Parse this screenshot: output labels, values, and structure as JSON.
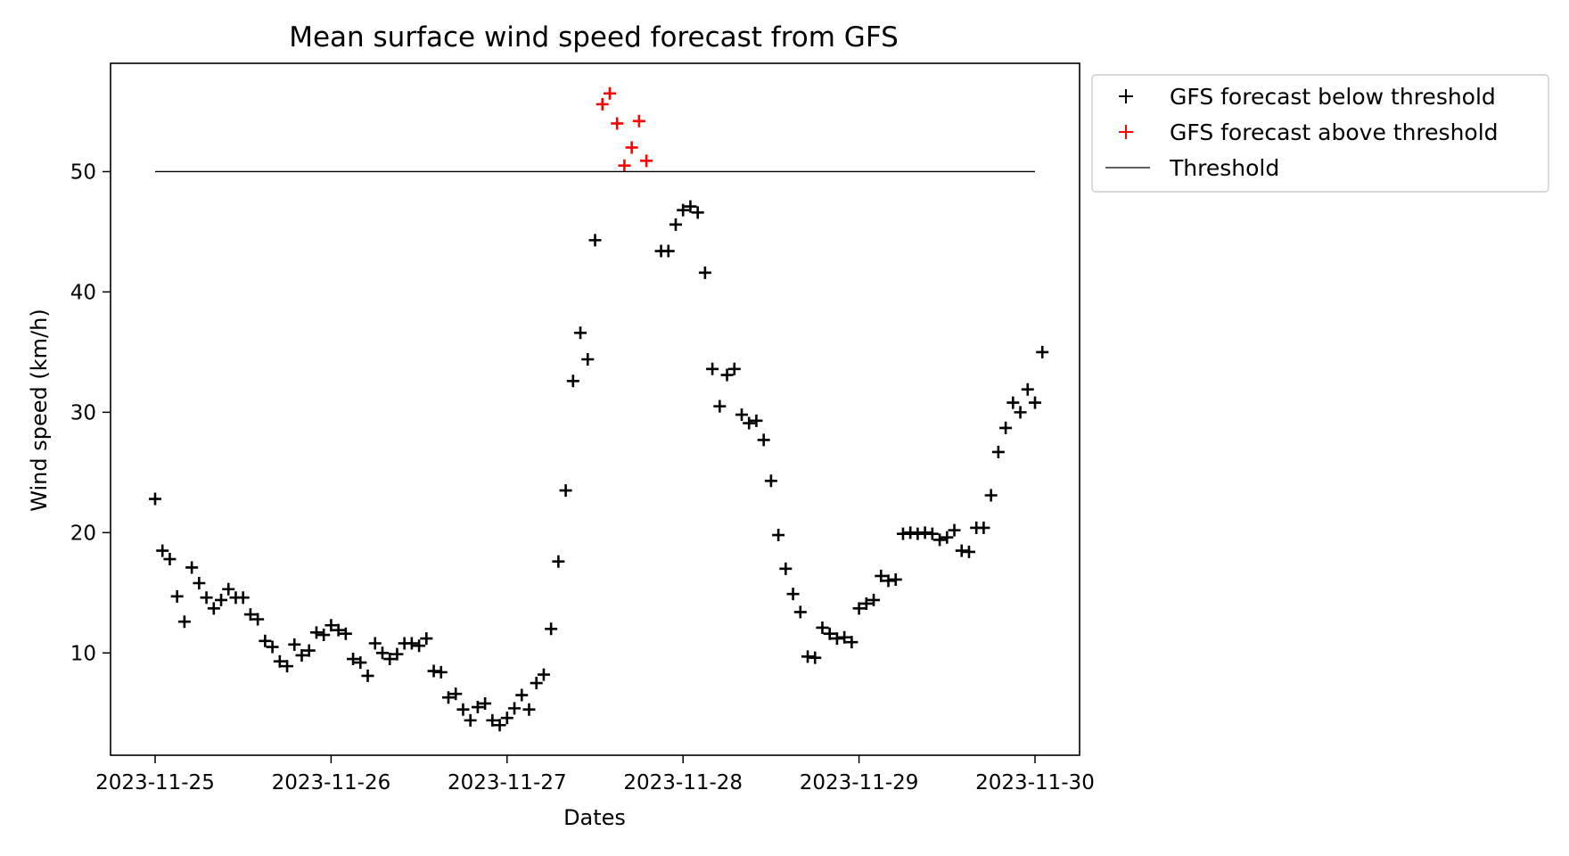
{
  "chart_data": {
    "type": "scatter",
    "title": "Mean surface wind speed forecast from GFS",
    "xlabel": "Dates",
    "ylabel": "Wind speed (km/h)",
    "x_type": "date",
    "x_range": [
      "2023-11-25 00:00",
      "2023-11-30 00:00"
    ],
    "x_ticks": [
      "2023-11-25",
      "2023-11-26",
      "2023-11-27",
      "2023-11-28",
      "2023-11-29",
      "2023-11-30"
    ],
    "ylim": [
      1.5,
      59
    ],
    "y_ticks": [
      10,
      20,
      30,
      40,
      50
    ],
    "grid": false,
    "legend_position": "outside-upper-right",
    "threshold": 50,
    "series": [
      {
        "name": "GFS forecast below threshold",
        "color": "#000000",
        "marker": "plus",
        "points": [
          [
            "2023-11-25 00:00",
            22.8
          ],
          [
            "2023-11-25 01:00",
            18.5
          ],
          [
            "2023-11-25 02:00",
            17.8
          ],
          [
            "2023-11-25 03:00",
            14.7
          ],
          [
            "2023-11-25 04:00",
            12.6
          ],
          [
            "2023-11-25 05:00",
            17.1
          ],
          [
            "2023-11-25 06:00",
            15.8
          ],
          [
            "2023-11-25 07:00",
            14.6
          ],
          [
            "2023-11-25 08:00",
            13.7
          ],
          [
            "2023-11-25 09:00",
            14.4
          ],
          [
            "2023-11-25 10:00",
            15.3
          ],
          [
            "2023-11-25 11:00",
            14.6
          ],
          [
            "2023-11-25 12:00",
            14.6
          ],
          [
            "2023-11-25 13:00",
            13.2
          ],
          [
            "2023-11-25 14:00",
            12.8
          ],
          [
            "2023-11-25 15:00",
            11.0
          ],
          [
            "2023-11-25 16:00",
            10.5
          ],
          [
            "2023-11-25 17:00",
            9.3
          ],
          [
            "2023-11-25 18:00",
            8.9
          ],
          [
            "2023-11-25 19:00",
            10.7
          ],
          [
            "2023-11-25 20:00",
            9.8
          ],
          [
            "2023-11-25 21:00",
            10.2
          ],
          [
            "2023-11-25 22:00",
            11.7
          ],
          [
            "2023-11-25 23:00",
            11.5
          ],
          [
            "2023-11-26 00:00",
            12.3
          ],
          [
            "2023-11-26 01:00",
            11.9
          ],
          [
            "2023-11-26 02:00",
            11.6
          ],
          [
            "2023-11-26 03:00",
            9.5
          ],
          [
            "2023-11-26 04:00",
            9.2
          ],
          [
            "2023-11-26 05:00",
            8.1
          ],
          [
            "2023-11-26 06:00",
            10.8
          ],
          [
            "2023-11-26 07:00",
            10.0
          ],
          [
            "2023-11-26 08:00",
            9.5
          ],
          [
            "2023-11-26 09:00",
            9.9
          ],
          [
            "2023-11-26 10:00",
            10.8
          ],
          [
            "2023-11-26 11:00",
            10.8
          ],
          [
            "2023-11-26 12:00",
            10.6
          ],
          [
            "2023-11-26 13:00",
            11.2
          ],
          [
            "2023-11-26 14:00",
            8.5
          ],
          [
            "2023-11-26 15:00",
            8.4
          ],
          [
            "2023-11-26 16:00",
            6.3
          ],
          [
            "2023-11-26 17:00",
            6.6
          ],
          [
            "2023-11-26 18:00",
            5.3
          ],
          [
            "2023-11-26 19:00",
            4.4
          ],
          [
            "2023-11-26 20:00",
            5.5
          ],
          [
            "2023-11-26 21:00",
            5.8
          ],
          [
            "2023-11-26 22:00",
            4.4
          ],
          [
            "2023-11-26 23:00",
            4.0
          ],
          [
            "2023-11-27 00:00",
            4.6
          ],
          [
            "2023-11-27 01:00",
            5.4
          ],
          [
            "2023-11-27 02:00",
            6.5
          ],
          [
            "2023-11-27 03:00",
            5.3
          ],
          [
            "2023-11-27 04:00",
            7.5
          ],
          [
            "2023-11-27 05:00",
            8.2
          ],
          [
            "2023-11-27 06:00",
            12.0
          ],
          [
            "2023-11-27 07:00",
            17.6
          ],
          [
            "2023-11-27 08:00",
            23.5
          ],
          [
            "2023-11-27 09:00",
            32.6
          ],
          [
            "2023-11-27 10:00",
            36.6
          ],
          [
            "2023-11-27 11:00",
            34.4
          ],
          [
            "2023-11-27 12:00",
            44.3
          ],
          [
            "2023-11-27 21:00",
            43.4
          ],
          [
            "2023-11-27 22:00",
            43.4
          ],
          [
            "2023-11-27 23:00",
            45.6
          ],
          [
            "2023-11-28 00:00",
            46.8
          ],
          [
            "2023-11-28 01:00",
            47.1
          ],
          [
            "2023-11-28 02:00",
            46.6
          ],
          [
            "2023-11-28 03:00",
            41.6
          ],
          [
            "2023-11-28 04:00",
            33.6
          ],
          [
            "2023-11-28 05:00",
            30.5
          ],
          [
            "2023-11-28 06:00",
            33.1
          ],
          [
            "2023-11-28 07:00",
            33.6
          ],
          [
            "2023-11-28 08:00",
            29.8
          ],
          [
            "2023-11-28 09:00",
            29.1
          ],
          [
            "2023-11-28 10:00",
            29.3
          ],
          [
            "2023-11-28 11:00",
            27.7
          ],
          [
            "2023-11-28 12:00",
            24.3
          ],
          [
            "2023-11-28 13:00",
            19.8
          ],
          [
            "2023-11-28 14:00",
            17.0
          ],
          [
            "2023-11-28 15:00",
            14.9
          ],
          [
            "2023-11-28 16:00",
            13.4
          ],
          [
            "2023-11-28 17:00",
            9.7
          ],
          [
            "2023-11-28 18:00",
            9.6
          ],
          [
            "2023-11-28 19:00",
            12.1
          ],
          [
            "2023-11-28 20:00",
            11.6
          ],
          [
            "2023-11-28 21:00",
            11.2
          ],
          [
            "2023-11-28 22:00",
            11.3
          ],
          [
            "2023-11-28 23:00",
            10.9
          ],
          [
            "2023-11-29 00:00",
            13.7
          ],
          [
            "2023-11-29 01:00",
            14.1
          ],
          [
            "2023-11-29 02:00",
            14.4
          ],
          [
            "2023-11-29 03:00",
            16.4
          ],
          [
            "2023-11-29 04:00",
            16.0
          ],
          [
            "2023-11-29 05:00",
            16.1
          ],
          [
            "2023-11-29 06:00",
            19.9
          ],
          [
            "2023-11-29 07:00",
            20.0
          ],
          [
            "2023-11-29 08:00",
            19.9
          ],
          [
            "2023-11-29 09:00",
            20.0
          ],
          [
            "2023-11-29 10:00",
            19.9
          ],
          [
            "2023-11-29 11:00",
            19.4
          ],
          [
            "2023-11-29 12:00",
            19.6
          ],
          [
            "2023-11-29 13:00",
            20.2
          ],
          [
            "2023-11-29 14:00",
            18.5
          ],
          [
            "2023-11-29 15:00",
            18.4
          ],
          [
            "2023-11-29 16:00",
            20.4
          ],
          [
            "2023-11-29 17:00",
            20.4
          ],
          [
            "2023-11-29 18:00",
            23.1
          ],
          [
            "2023-11-29 19:00",
            26.7
          ],
          [
            "2023-11-29 20:00",
            28.7
          ],
          [
            "2023-11-29 21:00",
            30.8
          ],
          [
            "2023-11-29 22:00",
            30.0
          ],
          [
            "2023-11-29 23:00",
            31.9
          ],
          [
            "2023-11-30 00:00",
            30.8
          ],
          [
            "2023-11-30 01:00",
            35.0
          ]
        ]
      },
      {
        "name": "GFS forecast above threshold",
        "color": "#ff0000",
        "marker": "plus",
        "points": [
          [
            "2023-11-27 13:00",
            55.6
          ],
          [
            "2023-11-27 14:00",
            56.5
          ],
          [
            "2023-11-27 15:00",
            54.0
          ],
          [
            "2023-11-27 16:00",
            50.5
          ],
          [
            "2023-11-27 17:00",
            52.0
          ],
          [
            "2023-11-27 18:00",
            54.2
          ],
          [
            "2023-11-27 19:00",
            50.9
          ]
        ]
      },
      {
        "name": "Threshold",
        "color": "#000000",
        "marker": "line",
        "points": [
          [
            "2023-11-25 00:00",
            50
          ],
          [
            "2023-11-30 00:00",
            50
          ]
        ]
      }
    ]
  }
}
